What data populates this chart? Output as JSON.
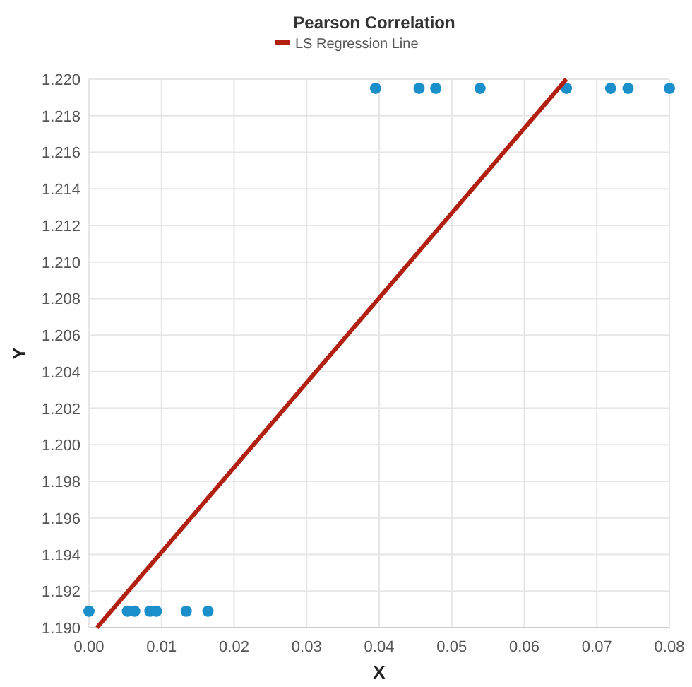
{
  "chart_data": {
    "type": "scatter",
    "title": "Pearson Correlation",
    "xlabel": "X",
    "ylabel": "Y",
    "xlim": [
      0,
      0.08
    ],
    "xticks": [
      {
        "value": 0,
        "label": "0.00"
      },
      0.01,
      0.02,
      0.03,
      0.04,
      0.05,
      0.06,
      0.07,
      0.08
    ],
    "ylim": [
      1.19,
      1.22
    ],
    "yticks": [
      {
        "value": 1.19,
        "label": "1.190"
      },
      1.192,
      1.194,
      1.196,
      1.198,
      {
        "value": 1.2,
        "label": "1.200"
      },
      1.202,
      1.204,
      1.206,
      1.208,
      {
        "value": 1.21,
        "label": "1.210"
      },
      1.212,
      1.214,
      1.216,
      1.218,
      {
        "value": 1.22,
        "label": "1.220"
      }
    ],
    "grid": true,
    "legend": "top",
    "marker": "circle",
    "series": [
      {
        "color": "#1a8fc9",
        "x": [
          0,
          0.0053,
          0.0063,
          0.0084,
          0.0093,
          0.0134,
          0.0164,
          0.0395,
          0.0455,
          0.0478,
          0.0539,
          0.0658,
          0.0719,
          0.0743,
          0.08
        ],
        "values": [
          1.1909,
          1.1909,
          1.1909,
          1.1909,
          1.1909,
          1.1909,
          1.1909,
          1.2195,
          1.2195,
          1.2195,
          1.2195,
          1.2195,
          1.2195,
          1.2195,
          1.2195
        ]
      },
      {
        "type": "line",
        "name": "LS Regression Line",
        "color": "#b22012",
        "line_style": "solid",
        "marker": "none",
        "x": [
          0.0011,
          0.0658
        ],
        "values": [
          1.19,
          1.22
        ]
      }
    ]
  }
}
